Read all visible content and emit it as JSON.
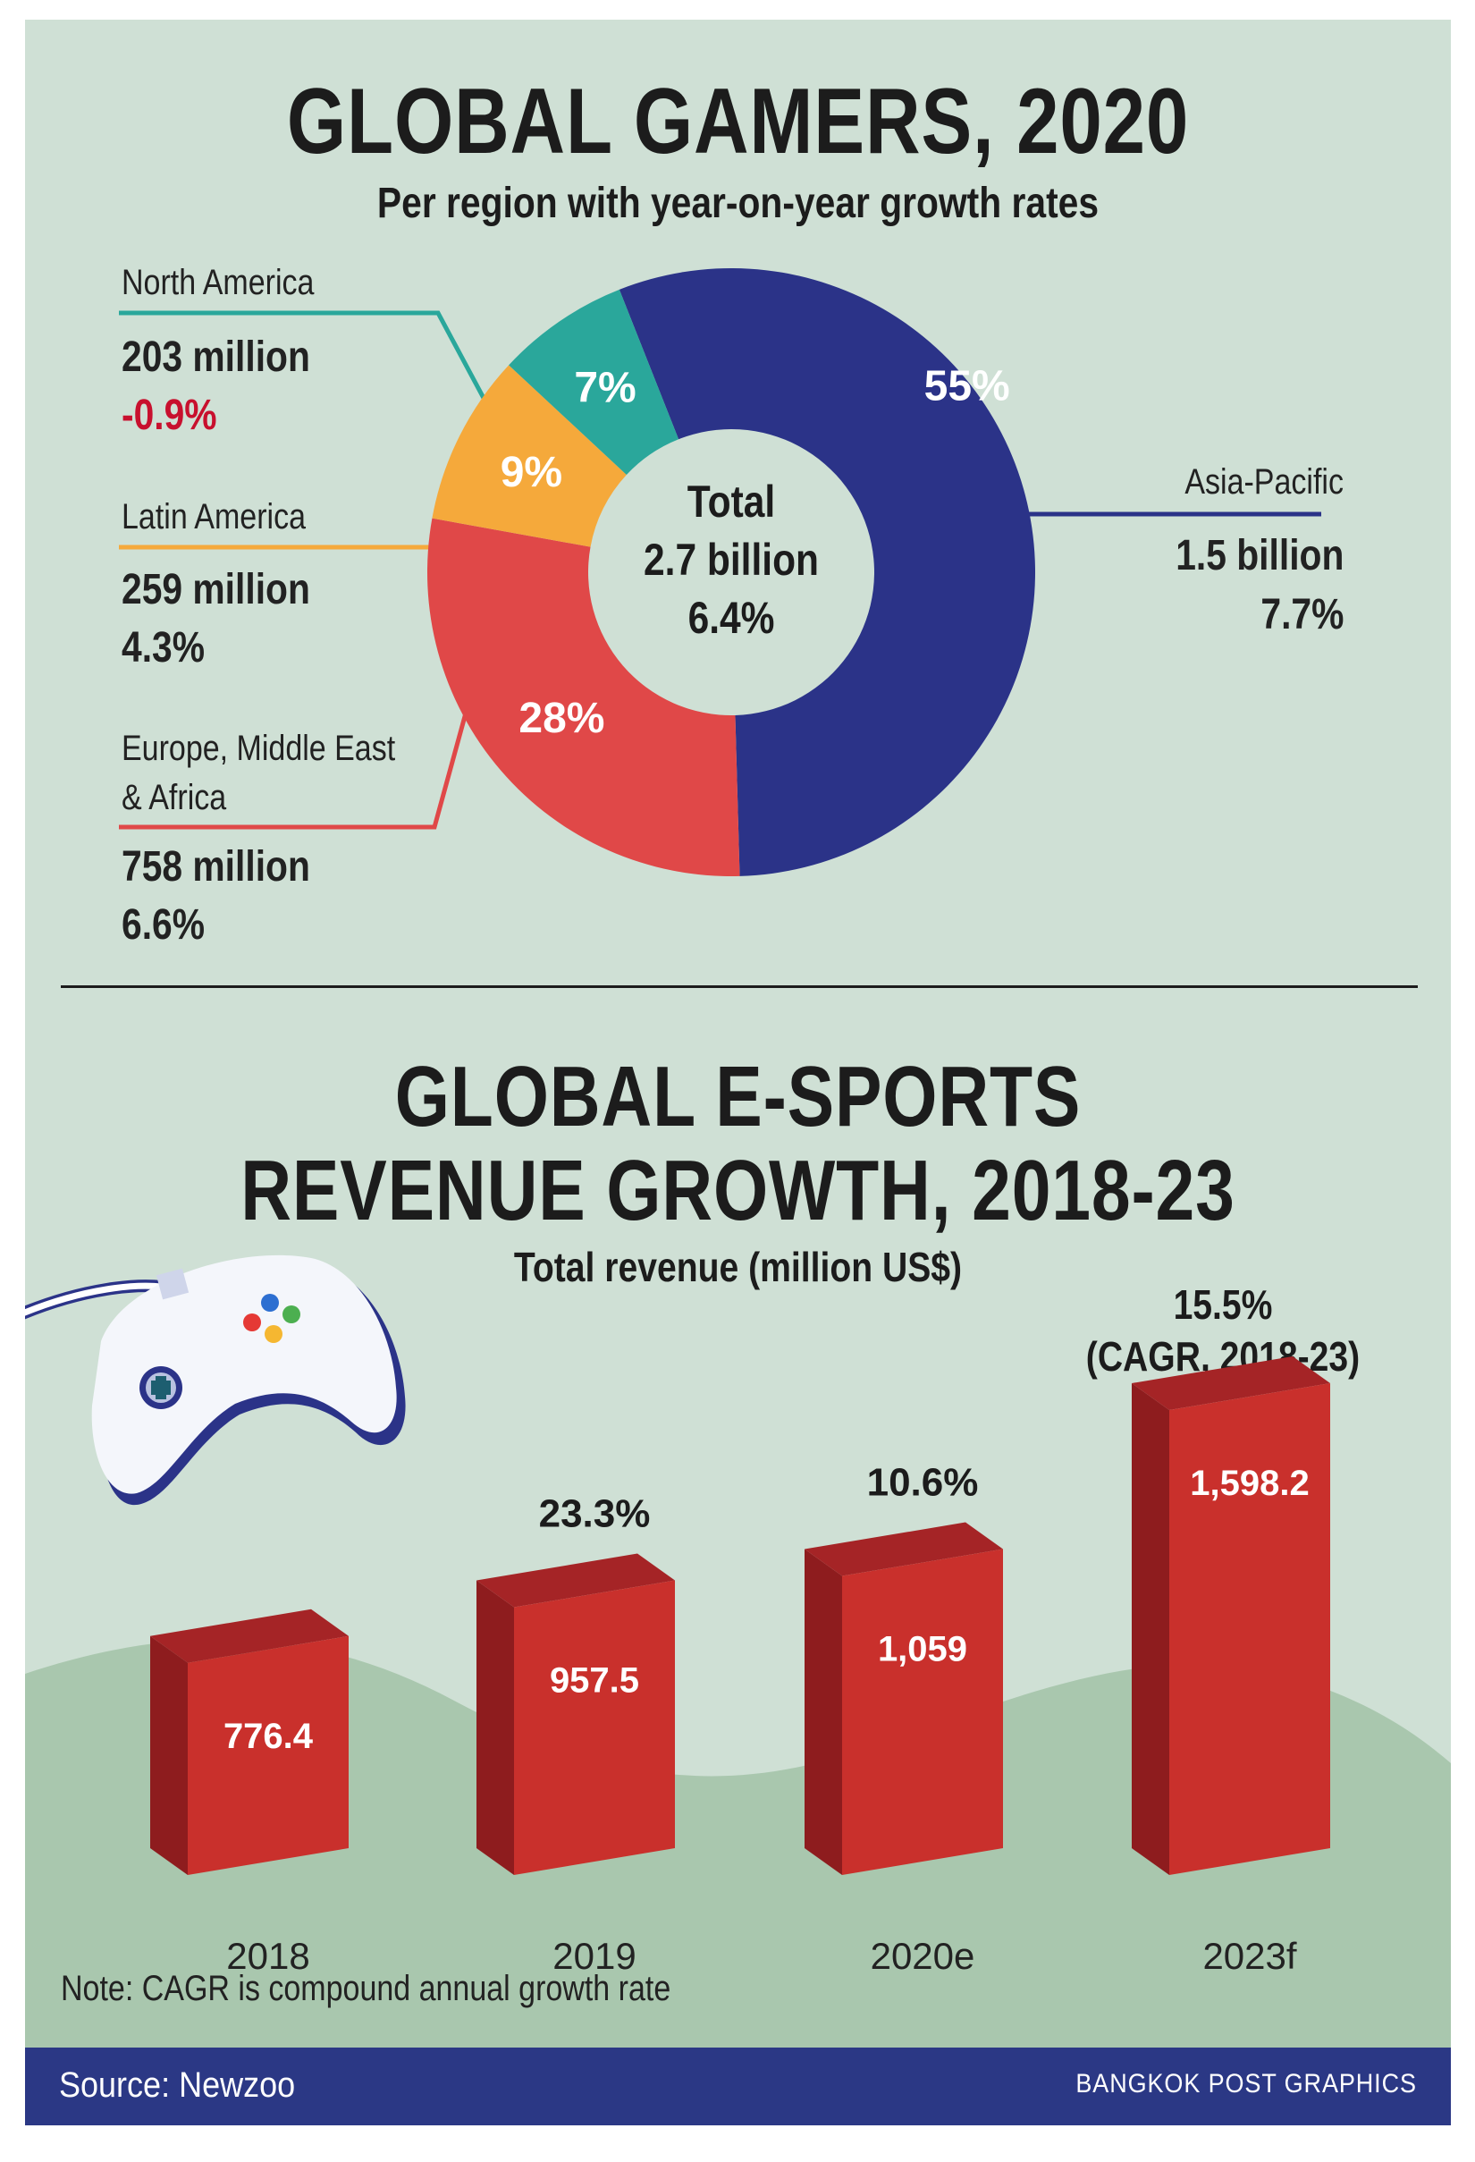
{
  "colors": {
    "background": "#cfe0d5",
    "north_america": "#2aa79b",
    "latin_america": "#f5a93b",
    "emea": "#e04848",
    "asia_pacific": "#2b3388",
    "negative_text": "#c8102e",
    "bar_front": "#c9302c",
    "bar_side": "#8e1c1e",
    "bar_top": "#a52426",
    "hill": "#a9c7ae",
    "footer": "#2b3885"
  },
  "donut": {
    "title": "GLOBAL GAMERS, 2020",
    "subtitle": "Per region with year-on-year growth rates",
    "center": {
      "line1": "Total",
      "line2": "2.7 billion",
      "line3": "6.4%"
    },
    "regions": [
      {
        "name": "North America",
        "value": "203 million",
        "growth": "-0.9%"
      },
      {
        "name": "Latin America",
        "value": "259 million",
        "growth": "4.3%"
      },
      {
        "name": "Europe, Middle East",
        "name2": "& Africa",
        "value": "758 million",
        "growth": "6.6%"
      },
      {
        "name": "Asia-Pacific",
        "value": "1.5 billion",
        "growth": "7.7%"
      }
    ]
  },
  "bars": {
    "title_line1": "GLOBAL E-SPORTS",
    "title_line2": "REVENUE GROWTH, 2018-23",
    "subtitle": "Total revenue (million US$)",
    "cagr_line1": "15.5%",
    "cagr_line2": "(CAGR, 2018-23)",
    "icon": "game-controller-icon"
  },
  "chart_data": [
    {
      "type": "pie",
      "title": "GLOBAL GAMERS, 2020",
      "subtitle": "Per region with year-on-year growth rates",
      "categories": [
        "Asia-Pacific",
        "Europe, Middle East & Africa",
        "Latin America",
        "North America"
      ],
      "values": [
        55,
        28,
        9,
        7
      ],
      "value_labels": [
        "55%",
        "28%",
        "9%",
        "7%"
      ],
      "colors": [
        "#2b3388",
        "#e04848",
        "#f5a93b",
        "#2aa79b"
      ],
      "center_label": "Total 2.7 billion 6.4%"
    },
    {
      "type": "bar",
      "title": "GLOBAL E-SPORTS REVENUE GROWTH, 2018-23",
      "subtitle": "Total revenue (million US$)",
      "categories": [
        "2018",
        "2019",
        "2020e",
        "2023f"
      ],
      "values": [
        776.4,
        957.5,
        1059,
        1598.2
      ],
      "value_labels": [
        "776.4",
        "957.5",
        "1,059",
        "1,598.2"
      ],
      "growth_labels": [
        "",
        "23.3%",
        "10.6%",
        ""
      ],
      "ylim": [
        0,
        1800
      ]
    }
  ],
  "note": "Note: CAGR is compound annual growth rate",
  "footer": {
    "source": "Source: Newzoo",
    "credit": "BANGKOK POST GRAPHICS"
  }
}
